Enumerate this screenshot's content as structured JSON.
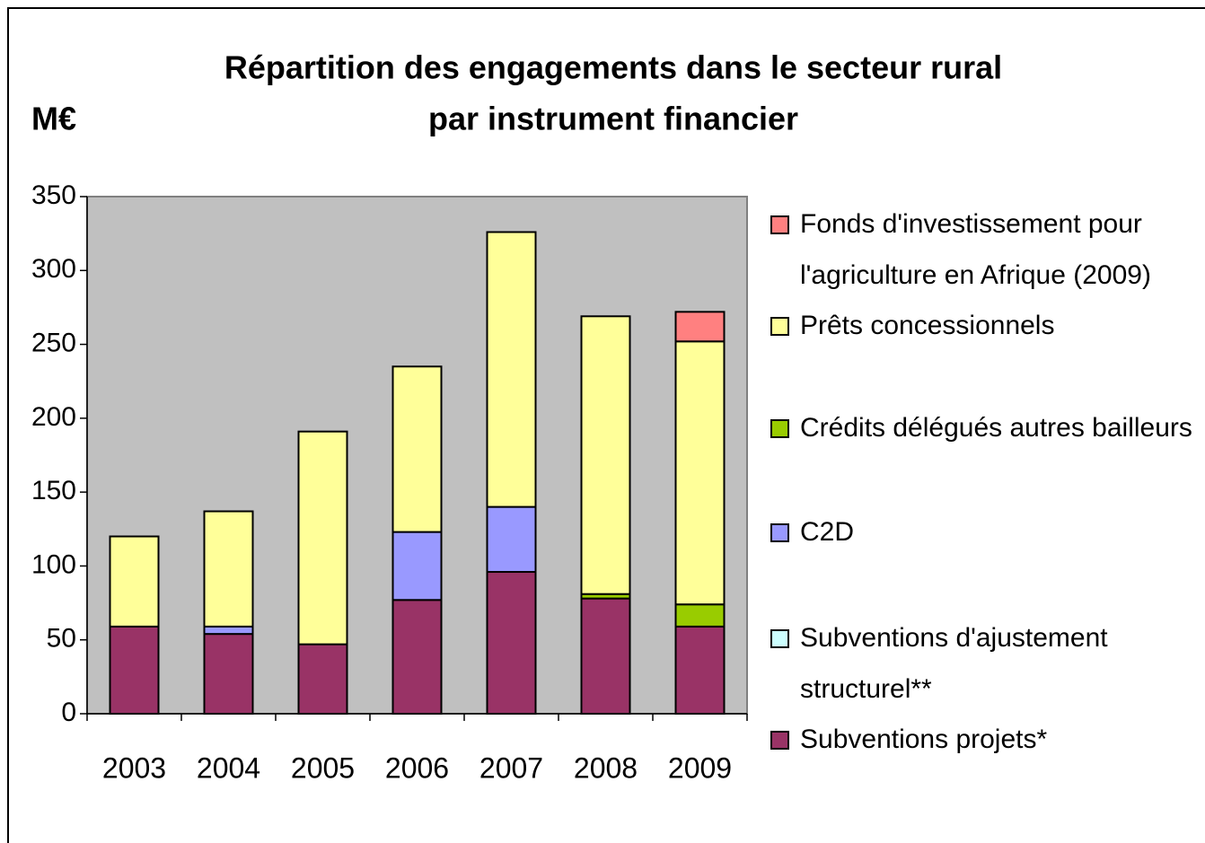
{
  "chart_data": {
    "type": "stacked_bar",
    "title": [
      "Répartition des engagements dans le secteur rural",
      "par instrument financier"
    ],
    "y_label": "M€",
    "categories": [
      "2003",
      "2004",
      "2005",
      "2006",
      "2007",
      "2008",
      "2009"
    ],
    "series": [
      {
        "name": "Subventions projets*",
        "color": "#993366",
        "values": [
          59,
          54,
          47,
          77,
          96,
          78,
          59
        ]
      },
      {
        "name": "Subventions d'ajustement structurel**",
        "color": "#ccffff",
        "values": [
          0,
          0,
          0,
          0,
          0,
          0,
          0
        ]
      },
      {
        "name": "C2D",
        "color": "#9999ff",
        "values": [
          0,
          5,
          0,
          46,
          44,
          0,
          0
        ]
      },
      {
        "name": "Crédits délégués autres bailleurs",
        "color": "#99cc00",
        "values": [
          0,
          0,
          0,
          0,
          0,
          3,
          15
        ]
      },
      {
        "name": "Prêts concessionnels",
        "color": "#ffff99",
        "values": [
          61,
          78,
          144,
          112,
          186,
          188,
          178
        ]
      },
      {
        "name": "Fonds d'investissement pour l'agriculture en Afrique (2009)",
        "color": "#ff8080",
        "values": [
          0,
          0,
          0,
          0,
          0,
          0,
          20
        ]
      }
    ],
    "ylim": [
      0,
      350
    ],
    "yticks": [
      0,
      50,
      100,
      150,
      200,
      250,
      300,
      350
    ],
    "plot_background": "#c0c0c0",
    "legend": "right"
  }
}
